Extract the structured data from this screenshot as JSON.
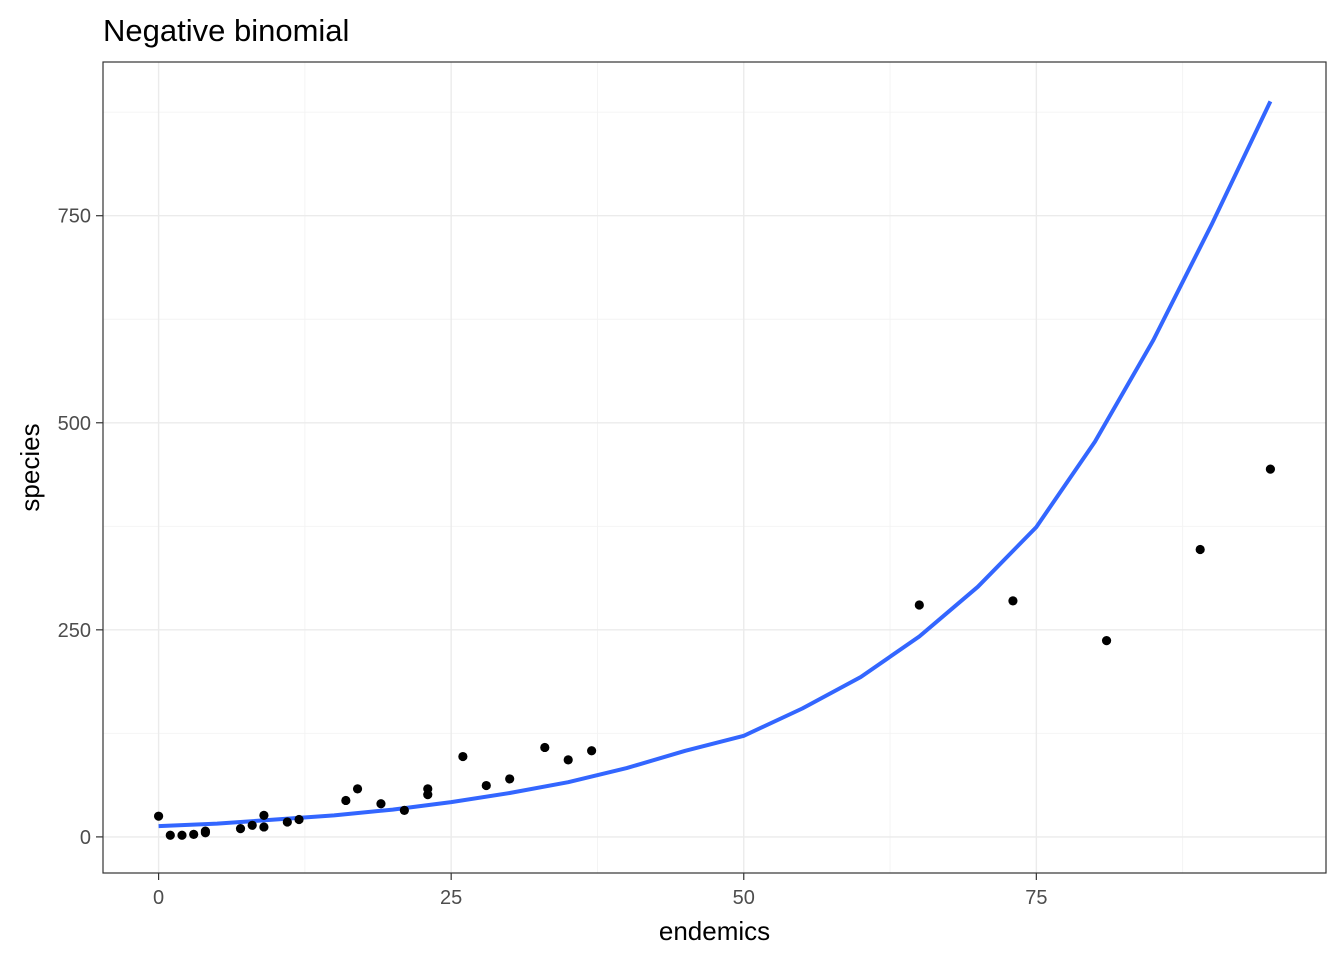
{
  "chart_data": {
    "type": "scatter",
    "title": "Negative binomial",
    "xlabel": "endemics",
    "ylabel": "species",
    "xlim": [
      -4.75,
      99.75
    ],
    "ylim": [
      -43.6,
      935.6
    ],
    "x_ticks": [
      0,
      25,
      50,
      75
    ],
    "y_ticks": [
      0,
      250,
      500,
      750
    ],
    "x_minor": [
      12.5,
      37.5,
      62.5,
      87.5
    ],
    "y_minor": [
      125,
      375,
      625,
      875
    ],
    "grid": true,
    "legend": "none",
    "points": [
      {
        "x": 0,
        "y": 25
      },
      {
        "x": 1,
        "y": 2
      },
      {
        "x": 2,
        "y": 2
      },
      {
        "x": 3,
        "y": 3
      },
      {
        "x": 4,
        "y": 5
      },
      {
        "x": 4,
        "y": 7
      },
      {
        "x": 7,
        "y": 10
      },
      {
        "x": 8,
        "y": 14
      },
      {
        "x": 9,
        "y": 12
      },
      {
        "x": 9,
        "y": 26
      },
      {
        "x": 11,
        "y": 18
      },
      {
        "x": 12,
        "y": 21
      },
      {
        "x": 16,
        "y": 44
      },
      {
        "x": 17,
        "y": 58
      },
      {
        "x": 19,
        "y": 40
      },
      {
        "x": 21,
        "y": 32
      },
      {
        "x": 23,
        "y": 51
      },
      {
        "x": 23,
        "y": 58
      },
      {
        "x": 26,
        "y": 97
      },
      {
        "x": 28,
        "y": 62
      },
      {
        "x": 30,
        "y": 70
      },
      {
        "x": 33,
        "y": 108
      },
      {
        "x": 35,
        "y": 93
      },
      {
        "x": 37,
        "y": 104
      },
      {
        "x": 65,
        "y": 280
      },
      {
        "x": 73,
        "y": 285
      },
      {
        "x": 81,
        "y": 237
      },
      {
        "x": 89,
        "y": 347
      },
      {
        "x": 95,
        "y": 444
      }
    ],
    "fit": {
      "name": "fitted curve",
      "x": [
        0,
        5,
        10,
        15,
        20,
        25,
        30,
        35,
        40,
        45,
        50,
        55,
        60,
        65,
        70,
        75,
        80,
        85,
        90,
        95
      ],
      "y": [
        13,
        16,
        21,
        26,
        33,
        42,
        53,
        66,
        83,
        104,
        122,
        155,
        193,
        242,
        302,
        374,
        477,
        600,
        740,
        888
      ]
    },
    "colors": {
      "points": "#000000",
      "fit": "#3366ff",
      "grid_major": "#ebebeb",
      "grid_minor": "#f3f3f3",
      "panel_border": "#333333",
      "tick_label": "#4d4d4d"
    }
  }
}
